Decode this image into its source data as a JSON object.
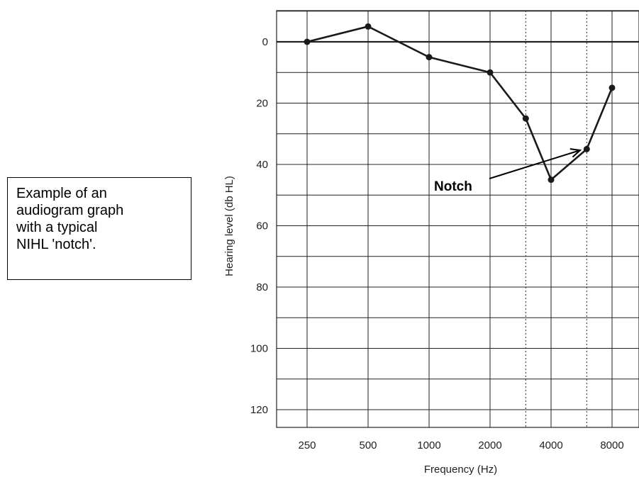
{
  "caption": {
    "line1": "Example of an",
    "line2": "audiogram graph",
    "line3": "with a typical",
    "line4": "NIHL 'notch'."
  },
  "chart_data": {
    "type": "line",
    "title": "",
    "xlabel": "Frequency (Hz)",
    "ylabel": "Hearing level (db HL)",
    "x_scale": "log2",
    "x_tick_labels": [
      "250",
      "500",
      "1000",
      "2000",
      "4000",
      "8000"
    ],
    "x_ticks": [
      250,
      500,
      1000,
      2000,
      4000,
      8000
    ],
    "x_dotted_lines": [
      3000,
      6000
    ],
    "y_ticks": [
      0,
      20,
      40,
      60,
      80,
      100,
      120
    ],
    "y_tick_labels": [
      "0",
      "20",
      "40",
      "60",
      "80",
      "100",
      "120"
    ],
    "y_inverted": true,
    "ylim": [
      -10,
      125
    ],
    "grid": true,
    "series": [
      {
        "x": [
          250,
          500,
          1000,
          2000,
          3000,
          4000,
          6000,
          8000
        ],
        "y": [
          0,
          -5,
          5,
          10,
          25,
          45,
          35,
          15
        ]
      }
    ],
    "annotations": [
      {
        "text": "Notch",
        "target_x": 4000,
        "target_y": 45
      }
    ],
    "colors": {
      "line": "#1a1a1a",
      "grid": "#222222"
    }
  }
}
